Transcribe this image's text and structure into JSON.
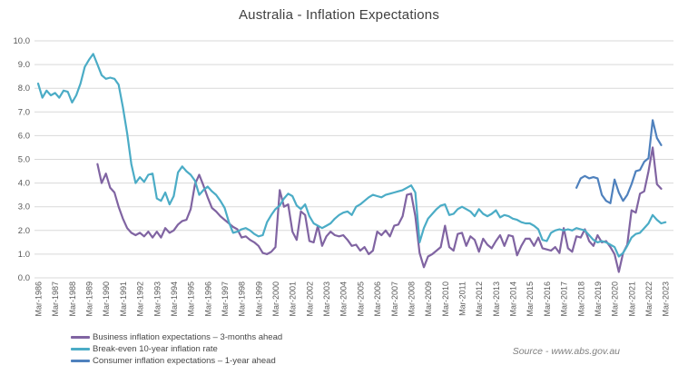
{
  "title": "Australia - Inflation Expectations",
  "source_note": "Source - www.abs.gov.au",
  "style": {
    "background": "#FFFFFF",
    "grid_color": "#D9D9D9",
    "axis_text_color": "#595959",
    "title_color": "#404040",
    "legend_text_color": "#474747",
    "source_color": "#7F7F7F"
  },
  "chart_data": {
    "type": "line",
    "title": "Australia - Inflation Expectations",
    "xlabel": "",
    "ylabel": "",
    "ylim": [
      0,
      10
    ],
    "grid": "horizontal",
    "legend_position": "bottom-left",
    "x_frequency": "quarterly",
    "y_axis": {
      "min": 0,
      "max": 10,
      "step": 1,
      "tick_labels": [
        "0.0",
        "1.0",
        "2.0",
        "3.0",
        "4.0",
        "5.0",
        "6.0",
        "7.0",
        "8.0",
        "9.0",
        "10.0"
      ]
    },
    "x_axis": {
      "tick_labels": [
        "Mar-1986",
        "Mar-1987",
        "Mar-1988",
        "Mar-1989",
        "Mar-1990",
        "Mar-1991",
        "Mar-1992",
        "Mar-1993",
        "Mar-1994",
        "Mar-1995",
        "Mar-1996",
        "Mar-1997",
        "Mar-1998",
        "Mar-1999",
        "Mar-2000",
        "Mar-2001",
        "Mar-2002",
        "Mar-2003",
        "Mar-2004",
        "Mar-2005",
        "Mar-2006",
        "Mar-2007",
        "Mar-2008",
        "Mar-2009",
        "Mar-2010",
        "Mar-2011",
        "Mar-2012",
        "Mar-2013",
        "Mar-2014",
        "Mar-2015",
        "Mar-2016",
        "Mar-2017",
        "Mar-2018",
        "Mar-2019",
        "Mar-2020",
        "Mar-2021",
        "Mar-2022",
        "Mar-2023"
      ]
    },
    "series": [
      {
        "name": "Business inflation expectations – 3-months ahead",
        "key": "business",
        "color": "#8064A2",
        "start": "Sep-1989",
        "start_quarter_index": 14,
        "values": [
          4.8,
          4.0,
          4.4,
          3.8,
          3.6,
          3.0,
          2.5,
          2.1,
          1.9,
          1.8,
          1.9,
          1.75,
          1.95,
          1.7,
          1.95,
          1.7,
          2.1,
          1.9,
          2.0,
          2.25,
          2.4,
          2.45,
          2.9,
          3.95,
          4.35,
          3.9,
          3.4,
          2.95,
          2.8,
          2.6,
          2.45,
          2.3,
          2.15,
          2.05,
          1.7,
          1.75,
          1.6,
          1.5,
          1.35,
          1.05,
          1.0,
          1.1,
          1.3,
          3.7,
          3.0,
          3.1,
          1.95,
          1.6,
          2.8,
          2.65,
          1.55,
          1.5,
          2.2,
          1.35,
          1.75,
          1.95,
          1.8,
          1.75,
          1.8,
          1.6,
          1.35,
          1.4,
          1.15,
          1.3,
          1.0,
          1.15,
          1.95,
          1.8,
          2.0,
          1.75,
          2.2,
          2.25,
          2.6,
          3.5,
          3.55,
          2.6,
          1.05,
          0.45,
          0.9,
          1.0,
          1.15,
          1.3,
          2.2,
          1.3,
          1.15,
          1.85,
          1.9,
          1.35,
          1.75,
          1.6,
          1.1,
          1.65,
          1.4,
          1.25,
          1.55,
          1.8,
          1.35,
          1.8,
          1.75,
          0.95,
          1.35,
          1.65,
          1.65,
          1.35,
          1.7,
          1.25,
          1.2,
          1.15,
          1.3,
          1.05,
          2.1,
          1.25,
          1.1,
          1.75,
          1.7,
          2.05,
          1.55,
          1.35,
          1.8,
          1.5,
          1.55,
          1.3,
          1.0,
          0.25,
          1.05,
          1.4,
          2.85,
          2.75,
          3.55,
          3.65,
          4.5,
          5.5,
          3.95,
          3.76
        ]
      },
      {
        "name": "Break-even 10-year inflation rate",
        "key": "break_even",
        "color": "#4BACC6",
        "start": "Mar-1986",
        "start_quarter_index": 0,
        "values": [
          8.2,
          7.6,
          7.9,
          7.7,
          7.8,
          7.6,
          7.9,
          7.85,
          7.4,
          7.7,
          8.2,
          8.9,
          9.2,
          9.45,
          9.0,
          8.55,
          8.4,
          8.45,
          8.4,
          8.15,
          7.2,
          6.1,
          4.8,
          4.0,
          4.25,
          4.05,
          4.35,
          4.4,
          3.35,
          3.25,
          3.6,
          3.1,
          3.45,
          4.45,
          4.7,
          4.5,
          4.35,
          4.1,
          3.5,
          3.7,
          3.85,
          3.65,
          3.5,
          3.25,
          2.95,
          2.35,
          1.9,
          1.95,
          2.05,
          2.1,
          2.0,
          1.85,
          1.75,
          1.8,
          2.35,
          2.65,
          2.9,
          3.05,
          3.35,
          3.55,
          3.45,
          3.05,
          2.9,
          3.1,
          2.6,
          2.3,
          2.2,
          2.1,
          2.2,
          2.3,
          2.5,
          2.65,
          2.75,
          2.8,
          2.65,
          3.0,
          3.1,
          3.25,
          3.4,
          3.5,
          3.45,
          3.4,
          3.5,
          3.55,
          3.6,
          3.65,
          3.7,
          3.8,
          3.9,
          3.6,
          1.5,
          2.1,
          2.5,
          2.7,
          2.9,
          3.05,
          3.1,
          2.65,
          2.7,
          2.9,
          3.0,
          2.9,
          2.8,
          2.6,
          2.9,
          2.7,
          2.6,
          2.7,
          2.85,
          2.55,
          2.65,
          2.6,
          2.5,
          2.45,
          2.35,
          2.3,
          2.3,
          2.2,
          2.05,
          1.6,
          1.55,
          1.9,
          2.0,
          2.05,
          2.0,
          2.05,
          2.0,
          2.1,
          2.05,
          2.0,
          1.8,
          1.6,
          1.5,
          1.55,
          1.5,
          1.4,
          1.3,
          0.9,
          1.05,
          1.35,
          1.7,
          1.85,
          1.9,
          2.1,
          2.3,
          2.65,
          2.45,
          2.3,
          2.35
        ]
      },
      {
        "name": "Consumer inflation expectations – 1-year ahead",
        "key": "consumer",
        "color": "#4F81BD",
        "start": "Dec-2017",
        "start_quarter_index": 127,
        "values": [
          3.8,
          4.2,
          4.3,
          4.2,
          4.25,
          4.2,
          3.5,
          3.25,
          3.15,
          4.15,
          3.6,
          3.25,
          3.5,
          3.95,
          4.5,
          4.55,
          4.9,
          5.05,
          6.65,
          5.9,
          5.6
        ]
      }
    ]
  }
}
